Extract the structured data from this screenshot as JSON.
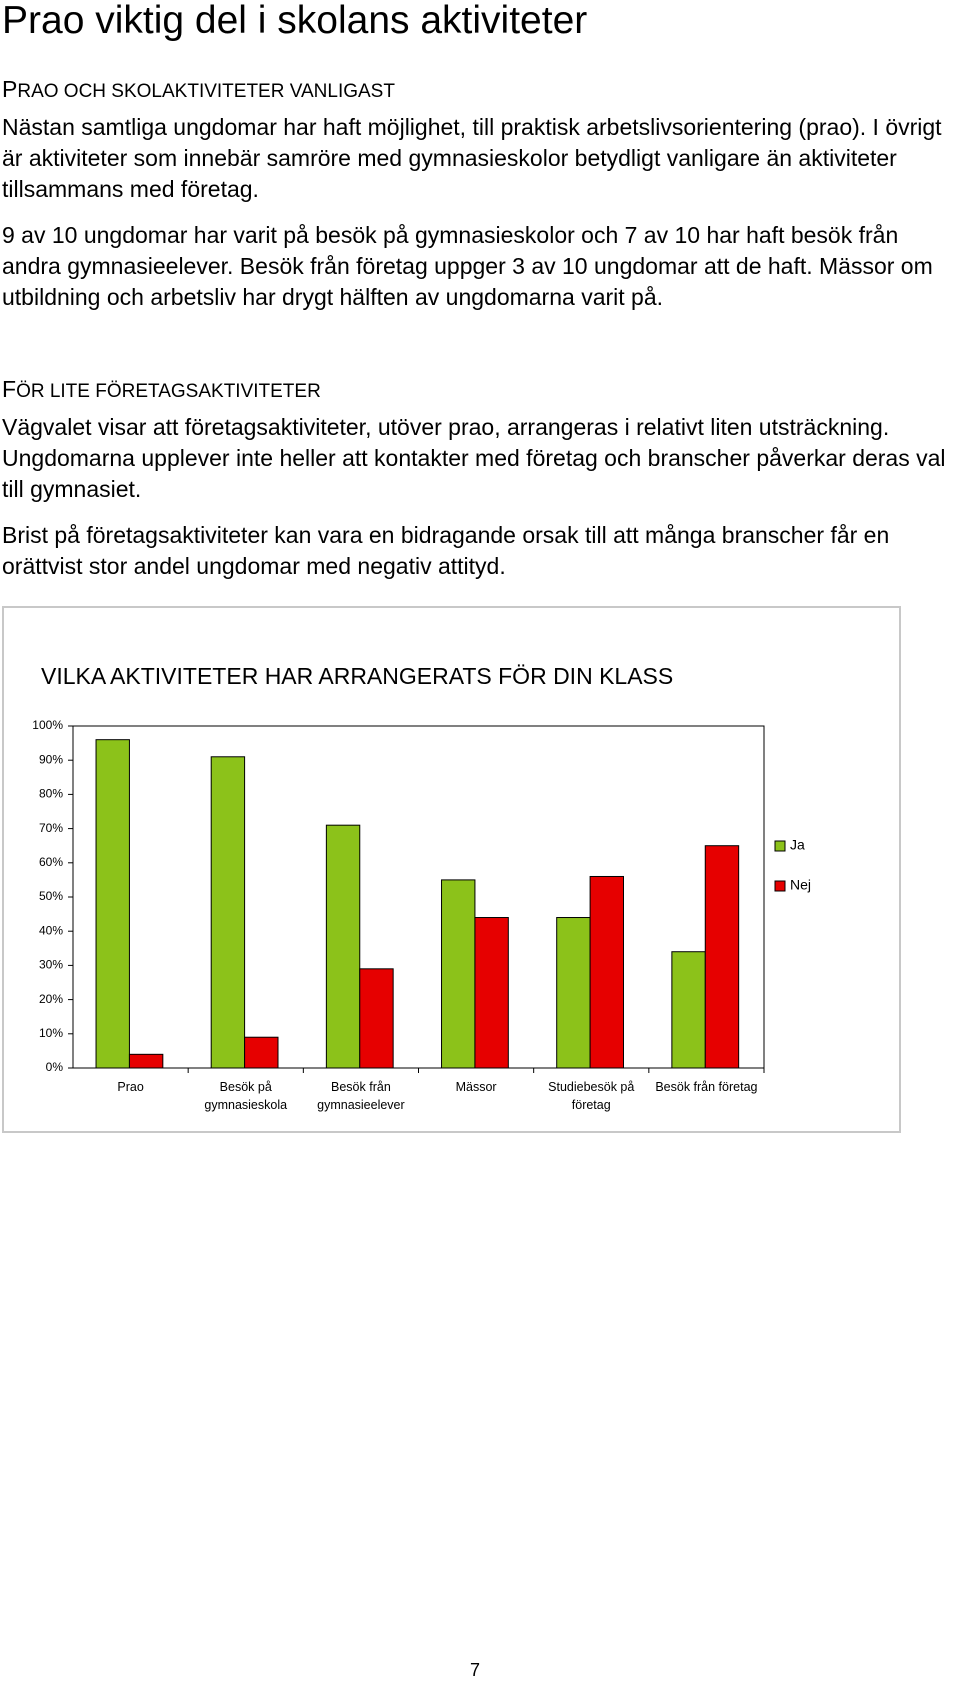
{
  "title": "Prao viktig del i skolans aktiviteter",
  "sections": [
    {
      "heading": "PRAO OCH SKOLAKTIVITETER VANLIGAST",
      "paragraphs": [
        "Nästan samtliga ungdomar har haft möjlighet, till praktisk arbetslivsorientering (prao). I övrigt är aktiviteter som innebär samröre med gymnasieskolor betydligt vanligare än aktiviteter tillsammans med företag.",
        "9 av 10 ungdomar har varit på besök på gymnasieskolor och 7 av 10 har haft besök från andra gymnasieelever. Besök från företag uppger 3 av 10 ungdomar att de haft. Mässor om utbildning och arbetsliv har drygt hälften av ungdomarna varit på."
      ]
    },
    {
      "heading": "FÖR LITE FÖRETAGSAKTIVITETER",
      "paragraphs": [
        "Vägvalet visar att företagsaktiviteter, utöver prao, arrangeras i relativt liten utsträckning. Ungdomarna upplever inte heller att kontakter med företag och branscher påverkar deras val till gymnasiet.",
        "Brist på företagsaktiviteter kan vara en bidragande orsak till att många branscher får en orättvist stor andel ungdomar med negativ attityd."
      ]
    }
  ],
  "chart_data": {
    "type": "bar",
    "title": "VILKA AKTIVITETER HAR ARRANGERATS FÖR DIN KLASS",
    "categories": [
      "Prao",
      "Besök på gymnasieskola",
      "Besök från gymnasieelever",
      "Mässor",
      "Studiebesök på företag",
      "Besök från företag"
    ],
    "series": [
      {
        "name": "Ja",
        "color": "#8cc21a",
        "values": [
          96,
          91,
          71,
          55,
          44,
          34
        ]
      },
      {
        "name": "Nej",
        "color": "#e60000",
        "values": [
          4,
          9,
          29,
          44,
          56,
          65
        ]
      }
    ],
    "ylim": [
      0,
      100
    ],
    "yticks": [
      {
        "value": 0,
        "label": "0%"
      },
      {
        "value": 10,
        "label": "10%"
      },
      {
        "value": 20,
        "label": "20%"
      },
      {
        "value": 30,
        "label": "30%"
      },
      {
        "value": 40,
        "label": "40%"
      },
      {
        "value": 50,
        "label": "50%"
      },
      {
        "value": 60,
        "label": "60%"
      },
      {
        "value": 70,
        "label": "70%"
      },
      {
        "value": 80,
        "label": "80%"
      },
      {
        "value": 90,
        "label": "90%"
      },
      {
        "value": 100,
        "label": "100%"
      }
    ],
    "legend": "right"
  },
  "page_number": "7"
}
